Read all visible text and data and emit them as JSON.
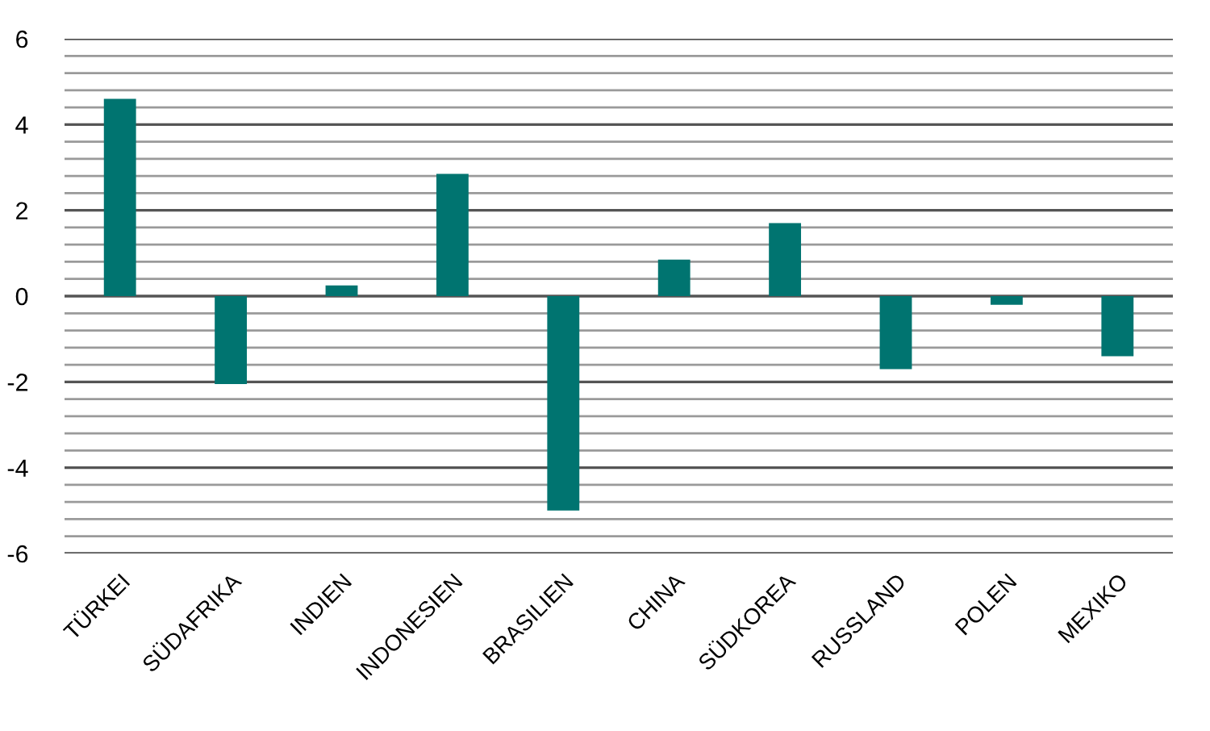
{
  "chart_data": {
    "type": "bar",
    "categories": [
      "TÜRKEI",
      "SÜDAFRIKA",
      "INDIEN",
      "INDONESIEN",
      "BRASILIEN",
      "CHINA",
      "SÜDKOREA",
      "RUSSLAND",
      "POLEN",
      "MEXIKO"
    ],
    "values": [
      4.6,
      -2.05,
      0.25,
      2.85,
      -5.0,
      0.85,
      1.7,
      -1.7,
      -0.2,
      -1.4
    ],
    "color": "#007470",
    "ylim": [
      -6,
      6
    ],
    "yticks": [
      -6,
      {
        "value": -5.6,
        "label": null
      },
      {
        "value": -5.2,
        "label": null
      },
      {
        "value": -4.8,
        "label": null
      },
      {
        "value": -4.4,
        "label": null
      },
      -4,
      {
        "value": -3.6,
        "label": null
      },
      {
        "value": -3.2,
        "label": null
      },
      {
        "value": -2.8,
        "label": null
      },
      {
        "value": -2.4,
        "label": null
      },
      -2,
      {
        "value": -1.6,
        "label": null
      },
      {
        "value": -1.2,
        "label": null
      },
      {
        "value": -0.8,
        "label": null
      },
      {
        "value": -0.4,
        "label": null
      },
      0,
      {
        "value": 0.4,
        "label": null
      },
      {
        "value": 0.8,
        "label": null
      },
      {
        "value": 1.2,
        "label": null
      },
      {
        "value": 1.6,
        "label": null
      },
      2,
      {
        "value": 2.4,
        "label": null
      },
      {
        "value": 2.8,
        "label": null
      },
      {
        "value": 3.2,
        "label": null
      },
      {
        "value": 3.6,
        "label": null
      },
      4,
      {
        "value": 4.4,
        "label": null
      },
      {
        "value": 4.8,
        "label": null
      },
      {
        "value": 5.2,
        "label": null
      },
      {
        "value": 5.6,
        "label": null
      },
      6
    ],
    "grid": "y",
    "legend": false
  }
}
